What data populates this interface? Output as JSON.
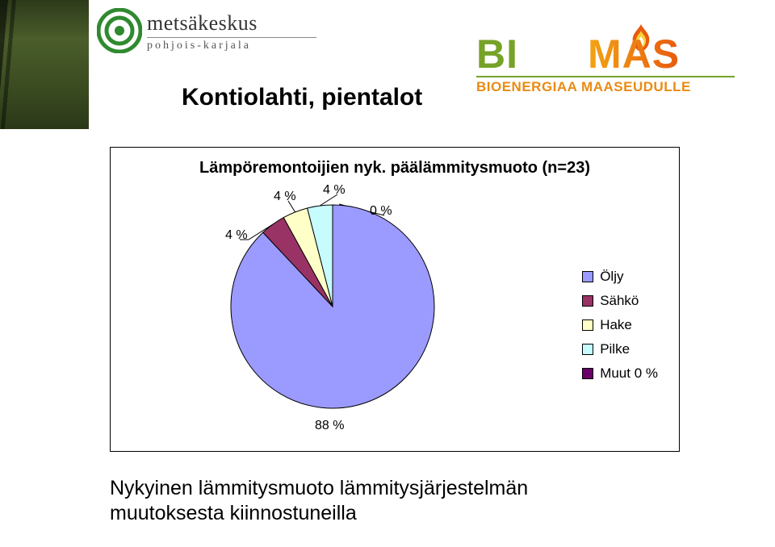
{
  "logos": {
    "metsakeskus": {
      "brand_main": "metsäkeskus",
      "brand_sub": "pohjois-karjala",
      "ring_color": "#2f8a2f",
      "ring_stroke": "#1e5e1e"
    },
    "biomas": {
      "word_bio": "BI",
      "word_mas": "MAS",
      "tagline": "BIOENERGIAA MAASEUDULLE",
      "green": "#76a227",
      "orange_start": "#f2a414",
      "orange_end": "#e85a0f",
      "flame_outer": "#e85a0f",
      "flame_inner": "#f7d23a"
    }
  },
  "heading": "Kontiolahti, pientalot",
  "chart": {
    "type": "pie",
    "title": "Lämpöremontoijien nyk. päälämmitysmuoto (n=23)",
    "title_fontsize": 20,
    "background_color": "#ffffff",
    "border_color": "#000000",
    "slice_stroke": "#000000",
    "slice_stroke_width": 1,
    "label_fontsize": 16,
    "legend_fontsize": 17,
    "series": [
      {
        "name": "Öljy",
        "value": 88,
        "label": "88 %",
        "color": "#9b9aff"
      },
      {
        "name": "Sähkö",
        "value": 4,
        "label": "4 %",
        "color": "#9a3365"
      },
      {
        "name": "Hake",
        "value": 4,
        "label": "4 %",
        "color": "#ffffc8"
      },
      {
        "name": "Pilke",
        "value": 4,
        "label": "4 %",
        "color": "#c7fcff"
      },
      {
        "name": "Muut",
        "value": 0,
        "label": "0 %",
        "legend_label": "Muut 0 %",
        "color": "#690069"
      }
    ]
  },
  "caption_line1": "Nykyinen lämmitysmuoto lämmitysjärjestelmän",
  "caption_line2": "muutoksesta kiinnostuneilla"
}
